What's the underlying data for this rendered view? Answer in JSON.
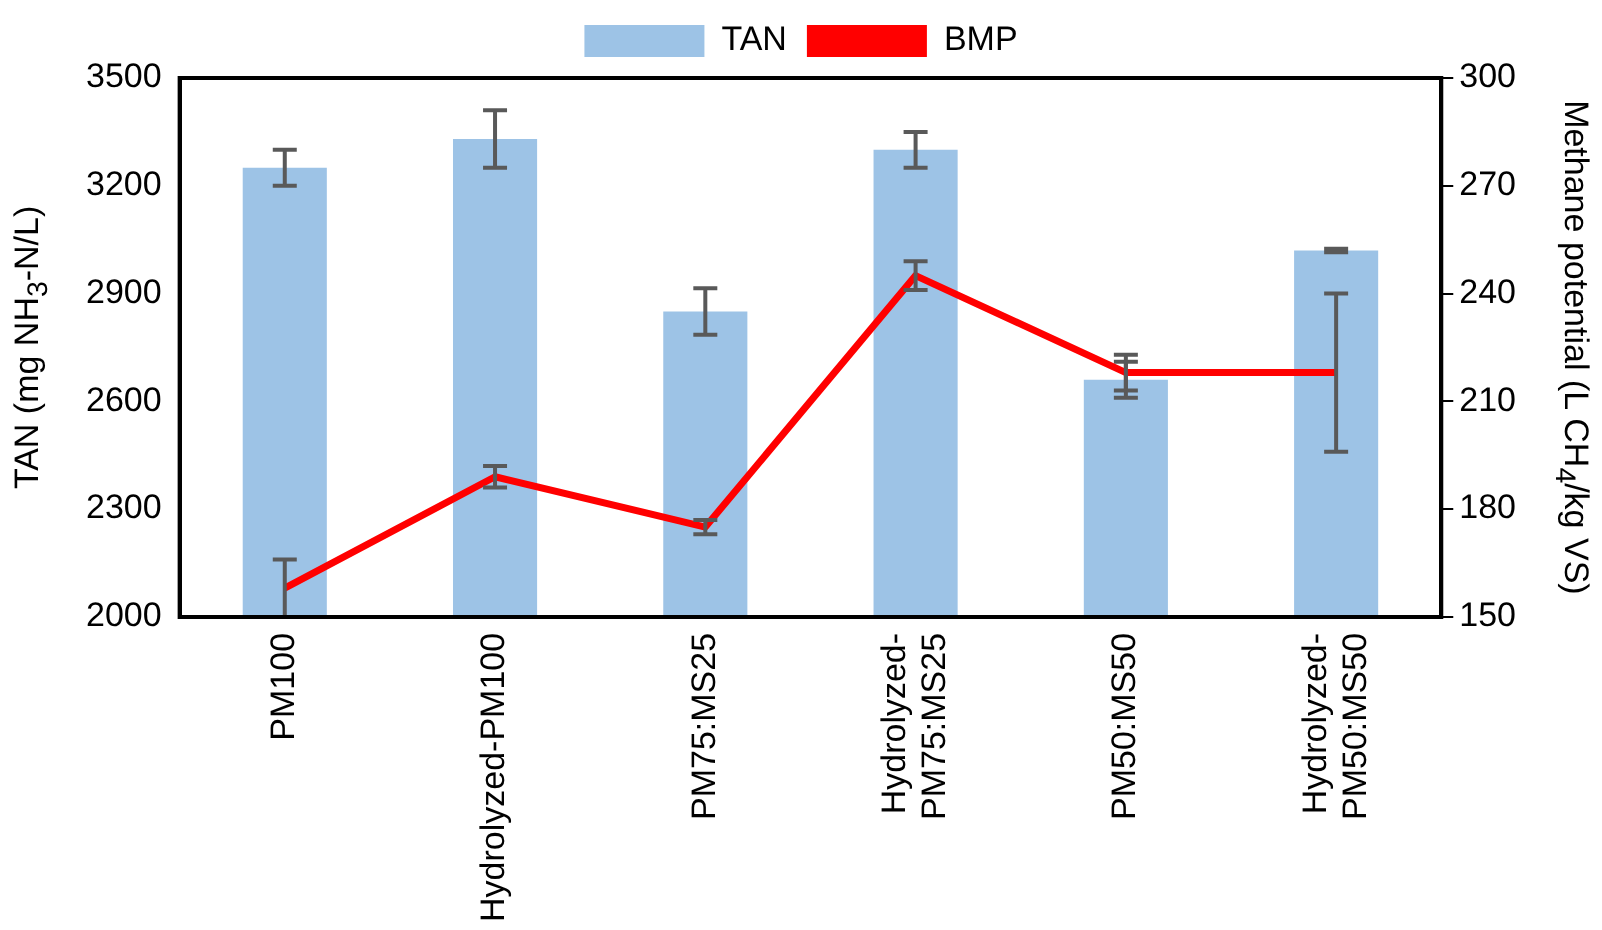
{
  "chart_data": {
    "type": "bar",
    "ylabel": "TAN (mg NH$_{3}$-N/L)",
    "y2label": "Methane potential (L CH$_{4}$/kg VS)",
    "categories": [
      "PM100",
      "Hydrolyzed-PM100",
      "PM75:MS25",
      "Hydrolyzed-PM75:MS25",
      "PM50:MS50",
      "Hydrolyzed-PM50:MS50"
    ],
    "series": [
      {
        "name": "TAN",
        "color": "#9dc3e6",
        "values": [
          3250,
          3330,
          2850,
          3300,
          2660,
          3020
        ],
        "errors": [
          50,
          80,
          65,
          50,
          50,
          5
        ]
      },
      {
        "name": "BMP",
        "type": "line",
        "axis": "y2",
        "color": "#ff0000",
        "values": [
          158,
          189,
          175,
          245,
          218,
          218
        ],
        "errors": [
          8,
          3,
          2,
          4,
          5,
          22
        ]
      }
    ],
    "ylim": [
      2000,
      3500
    ],
    "yticks": [
      2000,
      2300,
      2600,
      2900,
      3200,
      3500
    ],
    "y2lim": [
      150,
      300
    ],
    "y2ticks": [
      150,
      180,
      210,
      240,
      270,
      300
    ],
    "grid": false,
    "legend": "top",
    "line_style": "solid"
  }
}
